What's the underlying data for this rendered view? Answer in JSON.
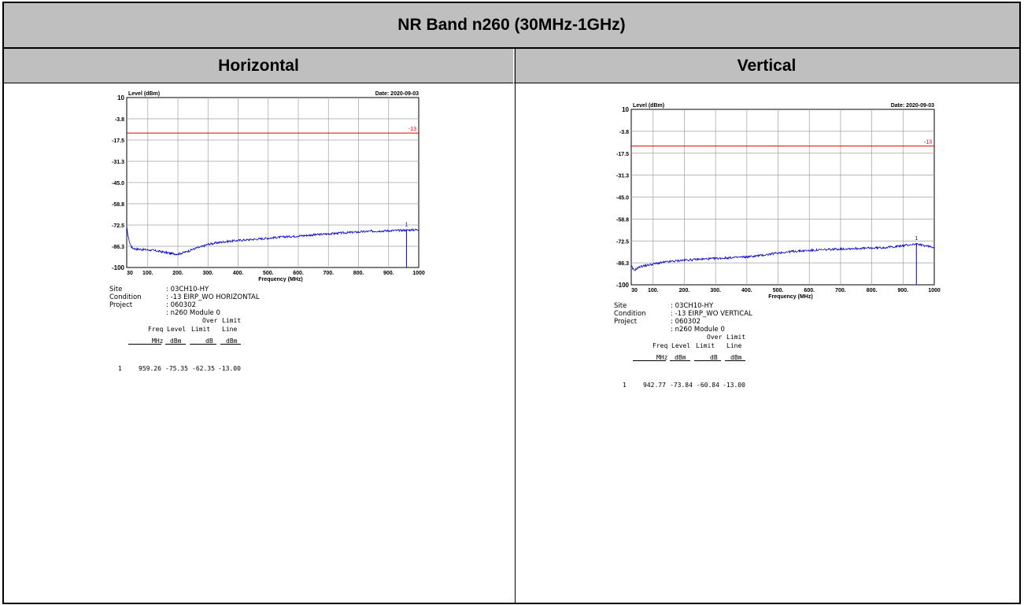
{
  "table": {
    "title": "NR Band n260 (30MHz-1GHz)",
    "col_left": "Horizontal",
    "col_right": "Vertical"
  },
  "chart_data": [
    {
      "type": "line",
      "ylabel": "Level (dBm)",
      "xlabel": "Frequency (MHz)",
      "date": "Date: 2020-09-03",
      "yticks": [
        "10",
        "-3.8",
        "-17.5",
        "-31.3",
        "-45.0",
        "-58.8",
        "-72.5",
        "-86.3",
        "-100"
      ],
      "xticks": [
        "30",
        "100.",
        "200.",
        "300.",
        "400.",
        "500.",
        "600.",
        "700.",
        "800.",
        "900.",
        "1000"
      ],
      "xtick_values": [
        30,
        100,
        200,
        300,
        400,
        500,
        600,
        700,
        800,
        900,
        1000
      ],
      "ylim": [
        -100,
        10
      ],
      "xlim": [
        30,
        1000
      ],
      "limit_line": {
        "value": -13,
        "label": "-13",
        "color": "#e00000"
      },
      "marker": {
        "label": "1",
        "freq": 959.26,
        "level": -75.35
      },
      "trace_color": "#0000cc",
      "series": [
        {
          "x": [
            30,
            35,
            40,
            45,
            50,
            60,
            80,
            100,
            120,
            140,
            160,
            180,
            200,
            220,
            240,
            260,
            280,
            300,
            330,
            360,
            400,
            450,
            500,
            550,
            600,
            650,
            700,
            750,
            800,
            850,
            900,
            950,
            1000
          ],
          "values": [
            -74,
            -80,
            -84,
            -86.5,
            -87.5,
            -88,
            -88.3,
            -88.6,
            -89,
            -89.6,
            -90.3,
            -91,
            -91.3,
            -90.3,
            -89,
            -87.5,
            -86.5,
            -85,
            -84,
            -83.2,
            -82.5,
            -81.8,
            -81,
            -80.2,
            -79.6,
            -78.9,
            -78.2,
            -77.6,
            -77,
            -76.5,
            -76.2,
            -75.9,
            -75.5
          ]
        }
      ],
      "info": {
        "site_label": "Site",
        "site": ": 03CH10-HY",
        "condition_label": "Condition",
        "condition": ": -13 EIRP_WO HORIZONTAL",
        "project_label": "Project",
        "project": ": 060302",
        "module": ": n260 Module 0"
      },
      "results": {
        "h_over": "Over",
        "h_limit": "Limit",
        "h_freq": "Freq",
        "h_level": "Level",
        "h_limit2": "Limit",
        "h_line": "Line",
        "u_freq": "MHz",
        "u_level": "dBm",
        "u_over": "dB",
        "u_line": "dBm",
        "row_no": "1",
        "freq": "959.26",
        "level": "-75.35",
        "over": "-62.35",
        "line": "-13.00"
      }
    },
    {
      "type": "line",
      "ylabel": "Level (dBm)",
      "xlabel": "Frequency (MHz)",
      "date": "Date: 2020-09-03",
      "yticks": [
        "10",
        "-3.8",
        "-17.5",
        "-31.3",
        "-45.0",
        "-58.8",
        "-72.5",
        "-86.3",
        "-100"
      ],
      "xticks": [
        "30",
        "100.",
        "200.",
        "300.",
        "400.",
        "500.",
        "600.",
        "700.",
        "800.",
        "900.",
        "1000"
      ],
      "xtick_values": [
        30,
        100,
        200,
        300,
        400,
        500,
        600,
        700,
        800,
        900,
        1000
      ],
      "ylim": [
        -100,
        10
      ],
      "xlim": [
        30,
        1000
      ],
      "limit_line": {
        "value": -13,
        "label": "-13",
        "color": "#e00000"
      },
      "marker": {
        "label": "1",
        "freq": 942.77,
        "level": -73.84
      },
      "trace_color": "#0000cc",
      "series": [
        {
          "x": [
            30,
            35,
            40,
            50,
            60,
            80,
            100,
            130,
            160,
            200,
            250,
            300,
            350,
            400,
            450,
            500,
            550,
            600,
            650,
            700,
            750,
            800,
            850,
            900,
            940,
            970,
            1000
          ],
          "values": [
            -88,
            -90,
            -91,
            -89.5,
            -88.5,
            -87.8,
            -87,
            -86,
            -85.3,
            -84.5,
            -84,
            -83.5,
            -83,
            -82.5,
            -81.5,
            -80,
            -79,
            -78.5,
            -78,
            -77.5,
            -77.2,
            -77,
            -76.5,
            -75.5,
            -74.5,
            -75.5,
            -76.5
          ]
        }
      ],
      "info": {
        "site_label": "Site",
        "site": ": 03CH10-HY",
        "condition_label": "Condition",
        "condition": ": -13 EIRP_WO VERTICAL",
        "project_label": "Project",
        "project": ": 060302",
        "module": ": n260 Module 0"
      },
      "results": {
        "h_over": "Over",
        "h_limit": "Limit",
        "h_freq": "Freq",
        "h_level": "Level",
        "h_limit2": "Limit",
        "h_line": "Line",
        "u_freq": "MHz",
        "u_level": "dBm",
        "u_over": "dB",
        "u_line": "dBm",
        "row_no": "1",
        "freq": "942.77",
        "level": "-73.84",
        "over": "-60.84",
        "line": "-13.00"
      }
    }
  ]
}
